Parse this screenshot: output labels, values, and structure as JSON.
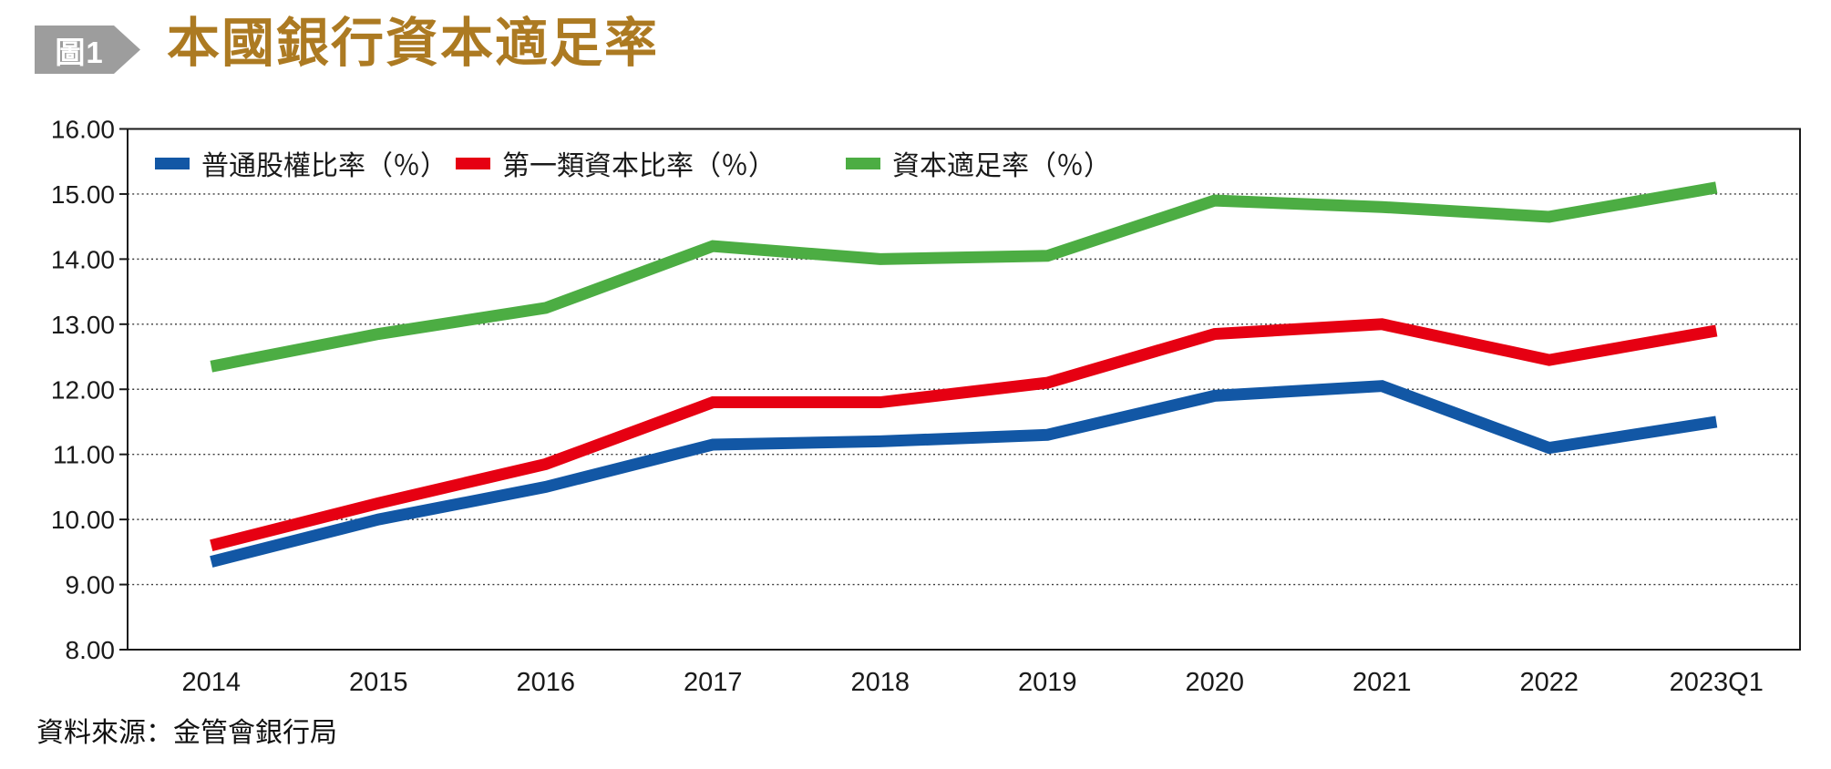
{
  "figure": {
    "badge_label": "圖1",
    "title": "本國銀行資本適足率",
    "source": "資料來源：金管會銀行局"
  },
  "colors": {
    "title_text": "#ac7a22",
    "badge_background": "#9d9d9d",
    "badge_text": "#ffffff",
    "axis_text": "#1a1a1a",
    "frame": "#1a1a1a",
    "gridline": "#3a3a3a"
  },
  "chart_data": {
    "type": "line",
    "title": "本國銀行資本適足率",
    "categories": [
      "2014",
      "2015",
      "2016",
      "2017",
      "2018",
      "2019",
      "2020",
      "2021",
      "2022",
      "2023Q1"
    ],
    "series": [
      {
        "name": "普通股權比率（％）",
        "color": "#1257a5",
        "values": [
          9.35,
          10.0,
          10.5,
          11.15,
          11.2,
          11.3,
          11.9,
          12.05,
          11.1,
          11.5
        ]
      },
      {
        "name": "第一類資本比率（％）",
        "color": "#e60012",
        "values": [
          9.6,
          10.25,
          10.85,
          11.8,
          11.8,
          12.1,
          12.85,
          13.0,
          12.45,
          12.9
        ]
      },
      {
        "name": "資本適足率（％）",
        "color": "#4cad43",
        "values": [
          12.35,
          12.85,
          13.25,
          14.2,
          14.0,
          14.05,
          14.9,
          14.8,
          14.65,
          15.1
        ]
      }
    ],
    "ylim": [
      8,
      16
    ],
    "y_ticks": [
      "16.00",
      "15.00",
      "14.00",
      "13.00",
      "12.00",
      "11.00",
      "10.00",
      "9.00",
      "8.00"
    ],
    "xlabel": "",
    "ylabel": "",
    "grid": "horizontal-dotted",
    "legend_position": "top-left-inside"
  }
}
